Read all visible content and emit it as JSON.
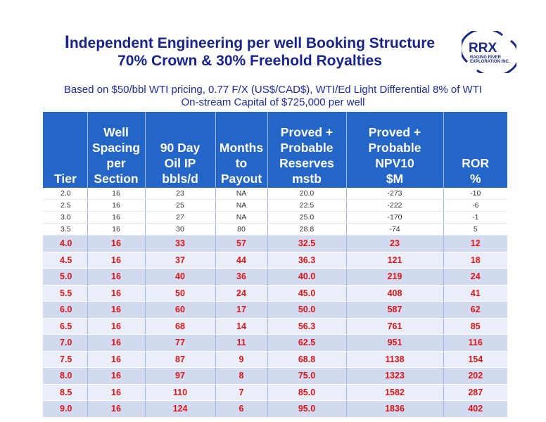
{
  "title": {
    "line1_first": "I",
    "line1_rest": "ndependent Engineering per well Booking Structure",
    "line2": "70% Crown & 30% Freehold Royalties"
  },
  "logo": {
    "mark": "RRX",
    "name_line1": "RAGING RIVER",
    "name_line2": "EXPLORATION INC."
  },
  "subtitle": {
    "line1": "Based on  $50/bbl WTI pricing, 0.77 F/X (US$/CAD$), WTI/Ed Light Differential 8% of WTI",
    "line2": "On-stream Capital of $725,000 per well"
  },
  "table": {
    "headers": [
      [
        "Tier"
      ],
      [
        "Well",
        "Spacing",
        "per",
        "Section"
      ],
      [
        "90 Day",
        "Oil IP",
        "bbls/d"
      ],
      [
        "Months",
        "to",
        "Payout"
      ],
      [
        "Proved +",
        "Probable",
        "Reserves",
        "mstb"
      ],
      [
        "Proved +",
        "Probable",
        "NPV10",
        "$M"
      ],
      [
        "ROR",
        "%"
      ]
    ],
    "rows": [
      [
        "2.0",
        "16",
        "23",
        "NA",
        "20.0",
        "-273",
        "-10"
      ],
      [
        "2.5",
        "16",
        "25",
        "NA",
        "22.5",
        "-222",
        "-6"
      ],
      [
        "3.0",
        "16",
        "27",
        "NA",
        "25.0",
        "-170",
        "-1"
      ],
      [
        "3.5",
        "16",
        "30",
        "80",
        "28.8",
        "-74",
        "5"
      ],
      [
        "4.0",
        "16",
        "33",
        "57",
        "32.5",
        "23",
        "12"
      ],
      [
        "4.5",
        "16",
        "37",
        "44",
        "36.3",
        "121",
        "18"
      ],
      [
        "5.0",
        "16",
        "40",
        "36",
        "40.0",
        "219",
        "24"
      ],
      [
        "5.5",
        "16",
        "50",
        "24",
        "45.0",
        "408",
        "41"
      ],
      [
        "6.0",
        "16",
        "60",
        "17",
        "50.0",
        "587",
        "62"
      ],
      [
        "6.5",
        "16",
        "68",
        "14",
        "56.3",
        "761",
        "85"
      ],
      [
        "7.0",
        "16",
        "77",
        "11",
        "62.5",
        "951",
        "116"
      ],
      [
        "7.5",
        "16",
        "87",
        "9",
        "68.8",
        "1138",
        "154"
      ],
      [
        "8.0",
        "16",
        "97",
        "8",
        "75.0",
        "1323",
        "202"
      ],
      [
        "8.5",
        "16",
        "110",
        "7",
        "85.0",
        "1582",
        "287"
      ],
      [
        "9.0",
        "16",
        "124",
        "6",
        "95.0",
        "1836",
        "402"
      ]
    ],
    "highlight_from_row": 4,
    "colors": {
      "header_bg": "#2466c8",
      "highlight_text": "#e01414",
      "band_dark": "#d2daf0",
      "band_light": "#eaeef8"
    }
  }
}
